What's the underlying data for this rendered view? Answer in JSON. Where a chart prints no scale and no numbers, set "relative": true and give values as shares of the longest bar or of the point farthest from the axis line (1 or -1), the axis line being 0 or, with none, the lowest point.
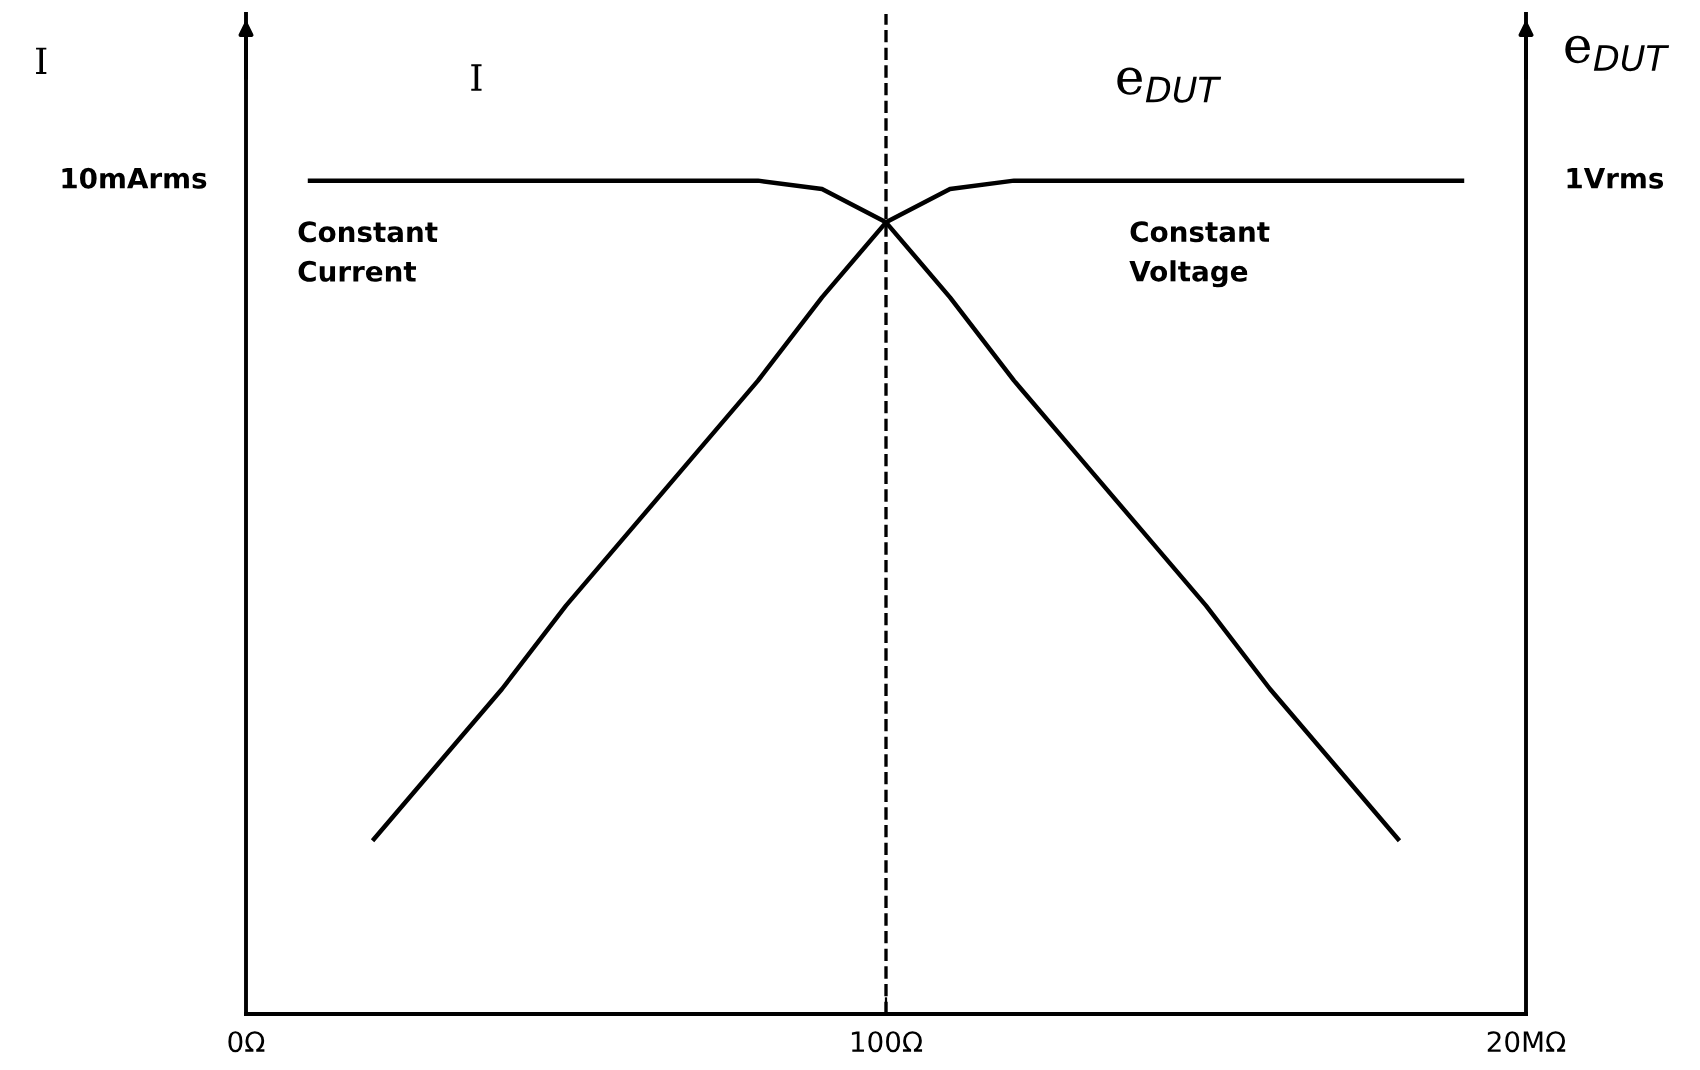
{
  "chart_data": {
    "type": "line",
    "relative": true,
    "y2label": "e$_{DUT}$",
    "categories": [
      "0Ω",
      null,
      null,
      null,
      null,
      null,
      null,
      null,
      null,
      null,
      "100Ω",
      null,
      null,
      null,
      null,
      null,
      null,
      null,
      null,
      null,
      "20MΩ"
    ],
    "series": [
      {
        "name": "I",
        "color": "#000000",
        "values": [
          null,
          1,
          1,
          1,
          1,
          1,
          1,
          1,
          1,
          0.99,
          0.95,
          0.86,
          0.76,
          0.67,
          0.58,
          0.49,
          0.39,
          0.3,
          0.21,
          null,
          null
        ]
      },
      {
        "name": "e$_{DUT}$",
        "color": "#000000",
        "values": [
          null,
          null,
          0.21,
          0.3,
          0.39,
          0.49,
          0.58,
          0.67,
          0.76,
          0.86,
          0.95,
          0.99,
          1,
          1,
          1,
          1,
          1,
          1,
          1,
          1,
          null
        ]
      }
    ],
    "ref_lines": [
      {
        "axis": "x",
        "value": "100Ω",
        "color": "#000000",
        "line_style": "dashed"
      }
    ],
    "annotations": [
      "10mArms",
      "1Vrms",
      "Constant\nCurrent",
      "Constant\nVoltage",
      "I"
    ],
    "grid": false,
    "legend": false,
    "marker": "none",
    "line_style": "solid"
  }
}
